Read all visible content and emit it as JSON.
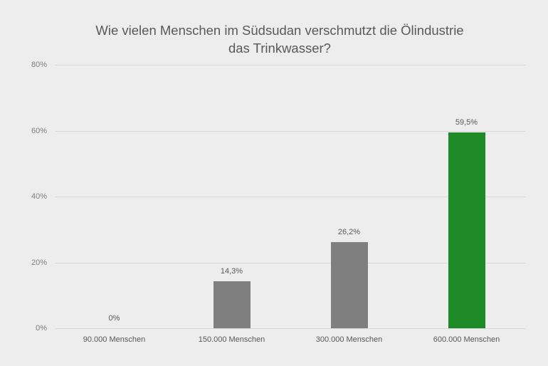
{
  "chart_data": {
    "type": "bar",
    "title": "Wie vielen Menschen im Südsudan verschmutzt die Ölindustrie das Trinkwasser?",
    "title_lines": [
      "Wie vielen Menschen im Südsudan verschmutzt die Ölindustrie",
      "das Trinkwasser?"
    ],
    "categories": [
      "90.000 Menschen",
      "150.000 Menschen",
      "300.000 Menschen",
      "600.000 Menschen"
    ],
    "values": [
      0,
      14.3,
      26.2,
      59.5
    ],
    "data_labels": [
      "0%",
      "14,3%",
      "26,2%",
      "59,5%"
    ],
    "bar_colors": [
      "#7f7f7f",
      "#7f7f7f",
      "#7f7f7f",
      "#1e8a28"
    ],
    "xlabel": "",
    "ylabel": "",
    "ylim": [
      0,
      80
    ],
    "yticks": [
      "0%",
      "20%",
      "40%",
      "60%",
      "80%"
    ],
    "grid": true,
    "legend": "none"
  }
}
